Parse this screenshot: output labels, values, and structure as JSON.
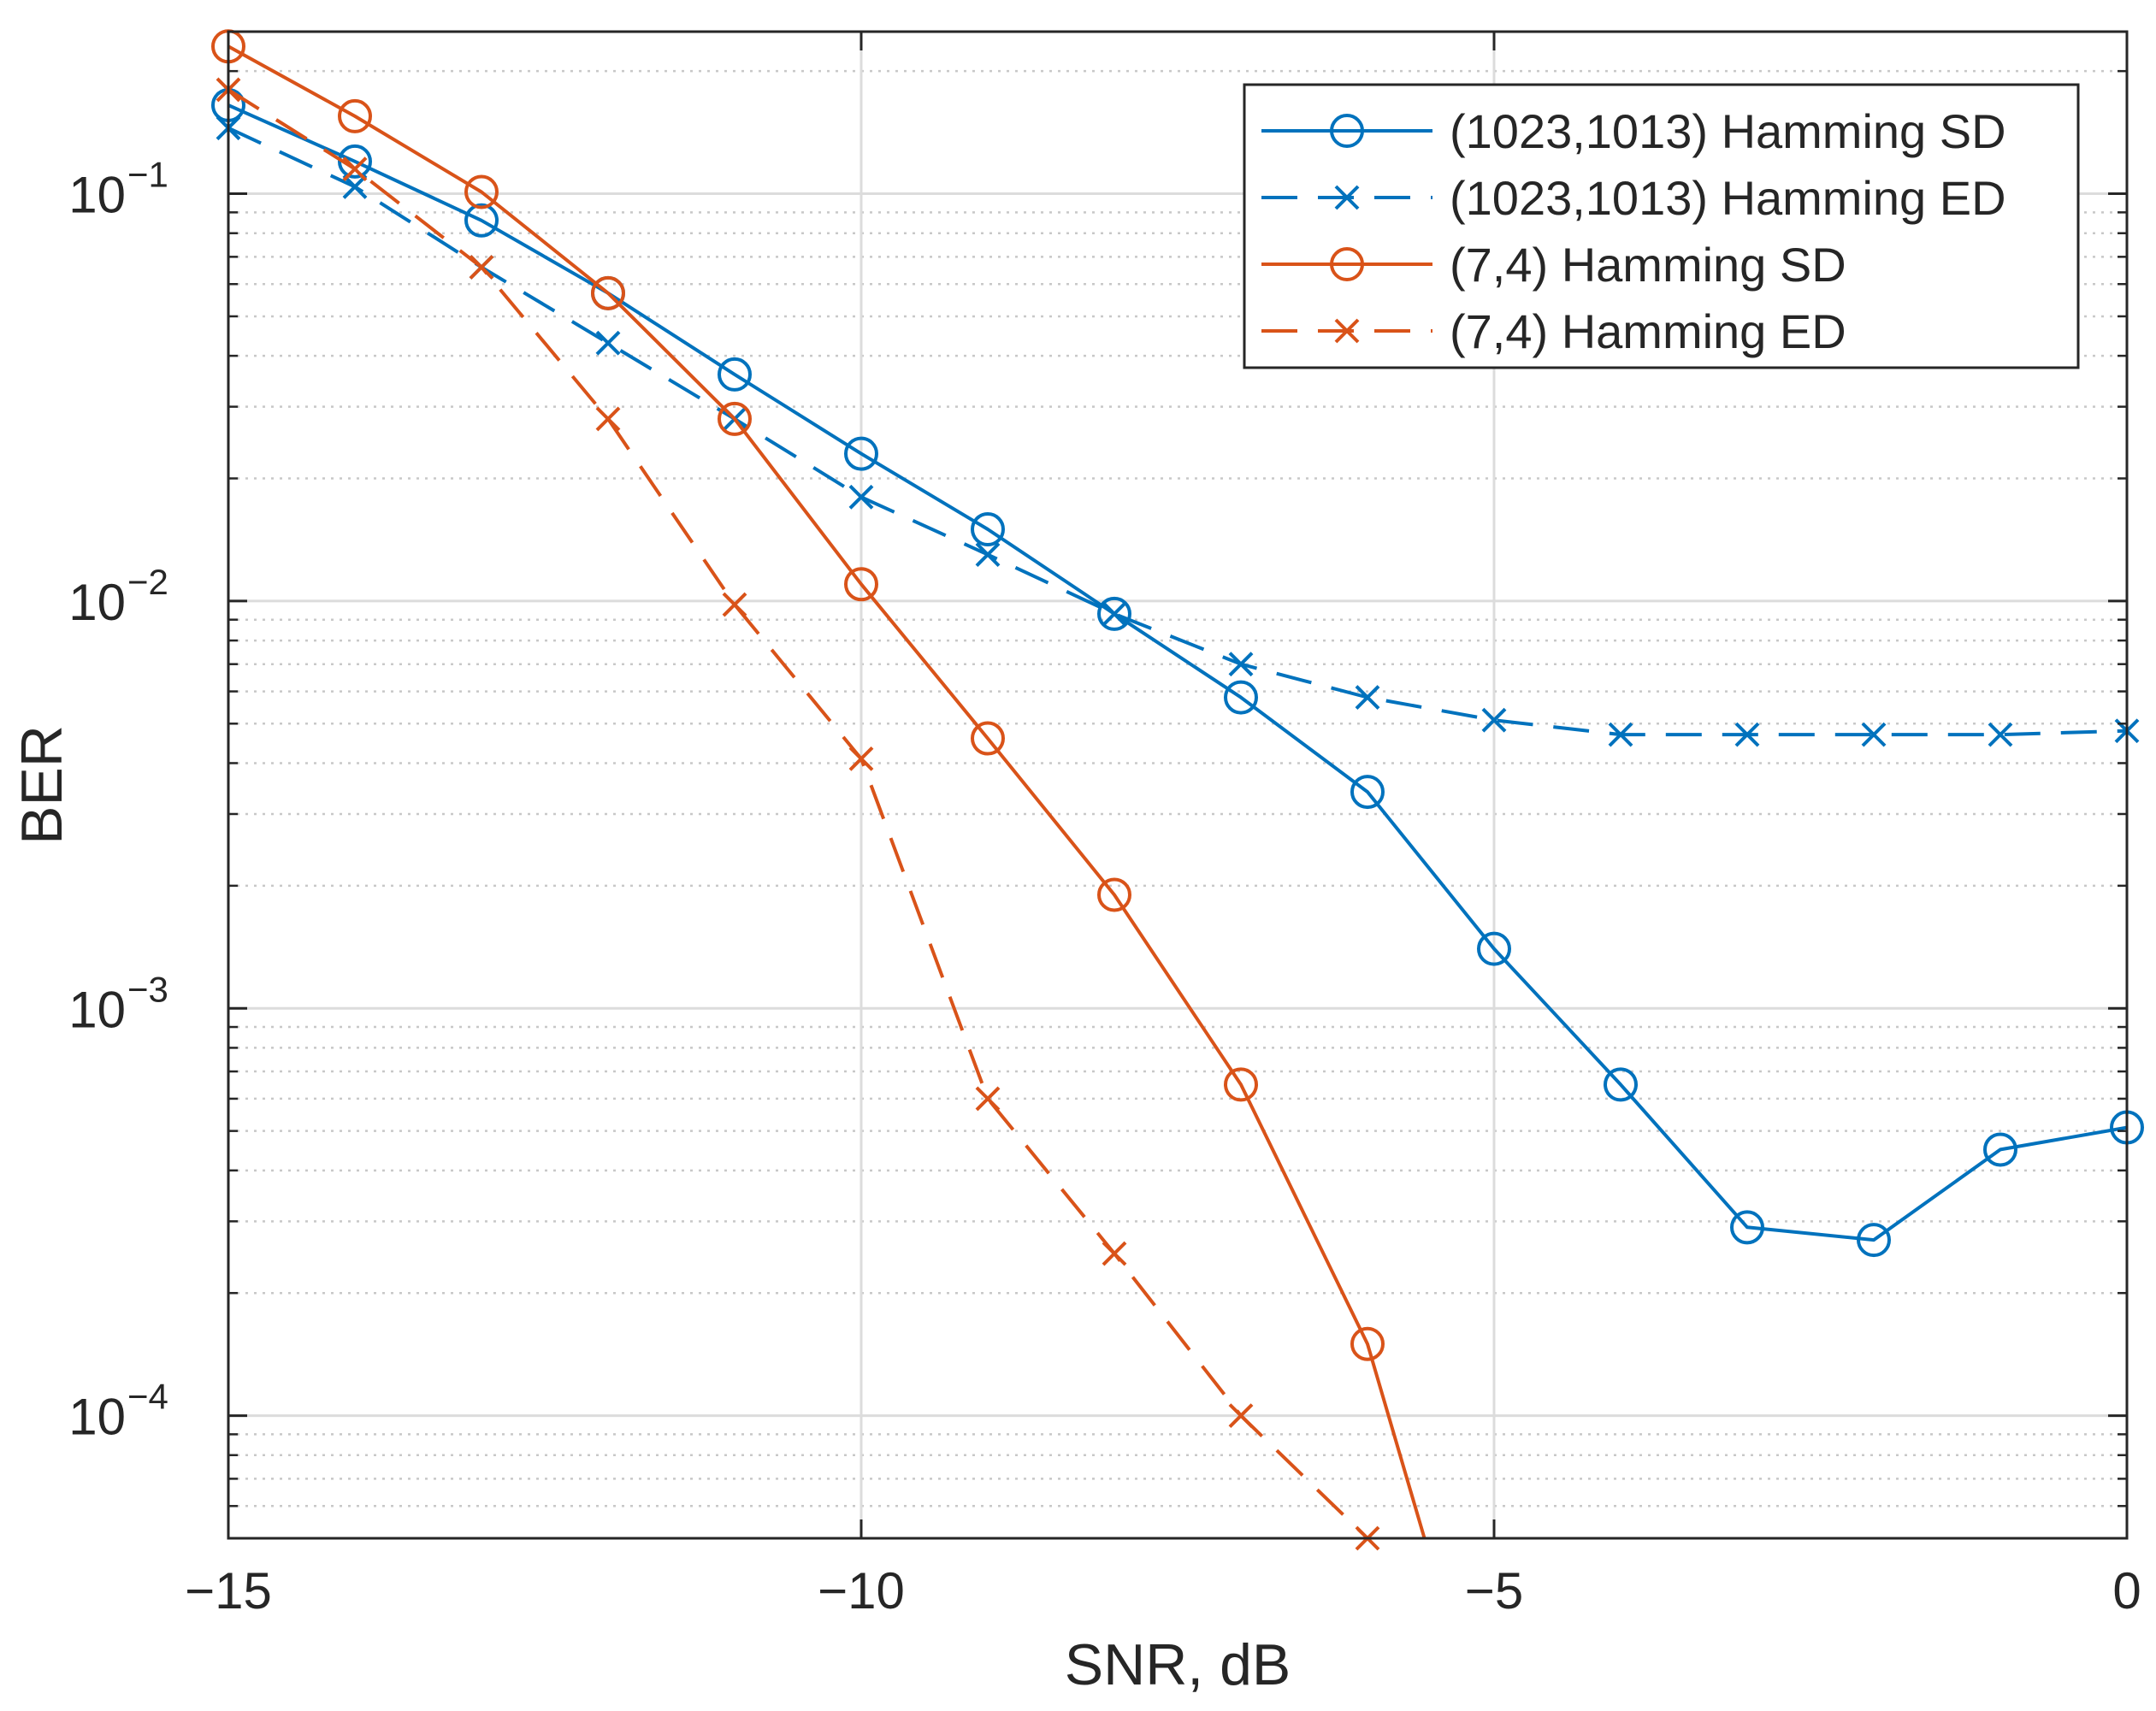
{
  "chart_data": {
    "type": "line",
    "xlabel": "SNR, dB",
    "ylabel": "BER",
    "xscale": "linear",
    "yscale": "log",
    "xlim": [
      -15,
      0
    ],
    "ylim": [
      5e-05,
      0.25
    ],
    "xticks": [
      -15,
      -10,
      -5,
      0
    ],
    "xtick_labels": [
      "−15",
      "−10",
      "−5",
      "0"
    ],
    "yticks": [
      {
        "value": 0.1,
        "base": "10",
        "exp": "−1"
      },
      {
        "value": 0.01,
        "base": "10",
        "exp": "−2"
      },
      {
        "value": 0.001,
        "base": "10",
        "exp": "−3"
      },
      {
        "value": 0.0001,
        "base": "10",
        "exp": "−4"
      }
    ],
    "grid": true,
    "minor_grid": true,
    "legend_position": "top-right",
    "series": [
      {
        "name": "(1023,1013) Hamming SD",
        "color": "#0072BD",
        "linestyle": "solid",
        "marker": "circle",
        "x": [
          -15,
          -14,
          -13,
          -12,
          -11,
          -10,
          -9,
          -8,
          -7,
          -6,
          -5,
          -4,
          -3,
          -2,
          -1,
          0
        ],
        "y": [
          0.165,
          0.12,
          0.086,
          0.057,
          0.036,
          0.023,
          0.015,
          0.0093,
          0.0058,
          0.0034,
          0.0014,
          0.00065,
          0.00029,
          0.00027,
          0.00045,
          0.00051
        ]
      },
      {
        "name": "(1023,1013) Hamming ED",
        "color": "#0072BD",
        "linestyle": "dashed",
        "marker": "x",
        "x": [
          -15,
          -14,
          -13,
          -12,
          -11,
          -10,
          -9,
          -8,
          -7,
          -6,
          -5,
          -4,
          -3,
          -2,
          -1,
          0
        ],
        "y": [
          0.145,
          0.104,
          0.066,
          0.043,
          0.028,
          0.018,
          0.013,
          0.0093,
          0.007,
          0.0058,
          0.0051,
          0.0047,
          0.0047,
          0.0047,
          0.0047,
          0.0048
        ]
      },
      {
        "name": "(7,4) Hamming SD",
        "color": "#D95319",
        "linestyle": "solid",
        "marker": "circle",
        "x": [
          -15,
          -14,
          -13,
          -12,
          -11,
          -10,
          -9,
          -8,
          -7,
          -6,
          -5.55
        ],
        "y": [
          0.23,
          0.155,
          0.101,
          0.057,
          0.028,
          0.011,
          0.0046,
          0.0019,
          0.00065,
          0.00015,
          5e-05
        ],
        "marker_count": 10
      },
      {
        "name": "(7,4) Hamming ED",
        "color": "#D95319",
        "linestyle": "dashed",
        "marker": "x",
        "x": [
          -15,
          -14,
          -13,
          -12,
          -11,
          -10,
          -9,
          -8,
          -7,
          -6
        ],
        "y": [
          0.18,
          0.115,
          0.066,
          0.028,
          0.0098,
          0.0041,
          0.0006,
          0.00025,
          0.0001,
          5e-05
        ]
      }
    ]
  }
}
